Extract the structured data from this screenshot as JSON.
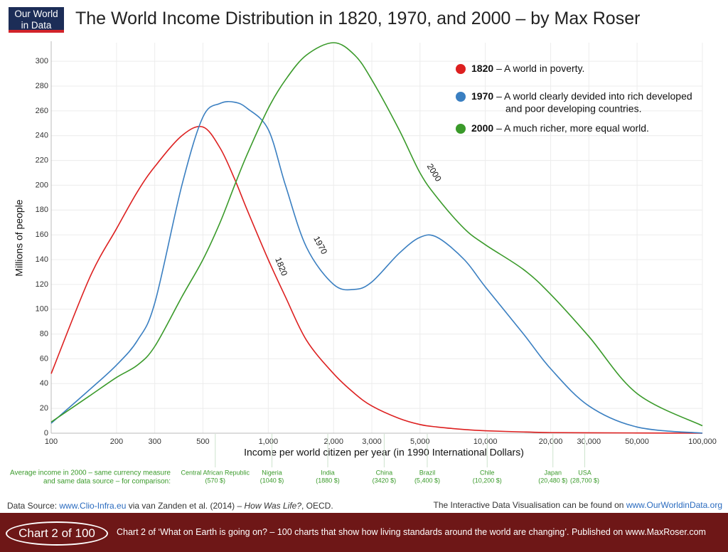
{
  "header": {
    "logo": [
      "Our World",
      "in Data"
    ],
    "title": "The World Income Distribution in 1820, 1970, and 2000 – by Max Roser"
  },
  "chart_data": {
    "type": "line",
    "x_label": "Income per world citizen per year (in 1990 International Dollars)",
    "y_label": "Millions of people",
    "log_x": true,
    "grid": true,
    "xlim": [
      100,
      100000
    ],
    "ylim": [
      0,
      315
    ],
    "xticks": [
      100,
      200,
      300,
      500,
      {
        "value": 1000,
        "label": "1,000"
      },
      {
        "value": 2000,
        "label": "2,000"
      },
      {
        "value": 3000,
        "label": "3,000"
      },
      {
        "value": 5000,
        "label": "5,000"
      },
      {
        "value": 10000,
        "label": "10,000"
      },
      {
        "value": 20000,
        "label": "20,000"
      },
      {
        "value": 30000,
        "label": "30,000"
      },
      {
        "value": 50000,
        "label": "50,000"
      },
      {
        "value": 100000,
        "label": "100,000"
      }
    ],
    "yticks": [
      0,
      20,
      40,
      60,
      80,
      100,
      120,
      140,
      160,
      180,
      200,
      220,
      240,
      260,
      280,
      300
    ],
    "x": [
      100,
      150,
      200,
      250,
      300,
      400,
      500,
      600,
      700,
      800,
      1000,
      1200,
      1500,
      2000,
      2500,
      3000,
      4000,
      5000,
      6000,
      8000,
      10000,
      15000,
      20000,
      30000,
      50000,
      100000
    ],
    "series": [
      {
        "name": "1820",
        "color": "#dd2020",
        "description": [
          "– A world in poverty."
        ],
        "values": [
          48,
          125,
          165,
          195,
          215,
          240,
          247,
          230,
          205,
          180,
          140,
          110,
          75,
          48,
          32,
          22,
          12,
          7,
          5,
          3,
          2,
          1,
          0.5,
          0.3,
          0.2,
          0
        ]
      },
      {
        "name": "1970",
        "color": "#3a7fc1",
        "description": [
          "– A world clearly devided into rich developed",
          "and poor developing countries."
        ],
        "values": [
          8,
          35,
          55,
          75,
          105,
          200,
          255,
          266,
          267,
          262,
          245,
          200,
          150,
          120,
          116,
          122,
          145,
          158,
          158,
          140,
          118,
          80,
          52,
          22,
          5,
          0
        ]
      },
      {
        "name": "2000",
        "color": "#3a9a2a",
        "description": [
          "– A much richer, more equal world."
        ],
        "values": [
          9,
          30,
          45,
          55,
          70,
          110,
          140,
          170,
          200,
          225,
          262,
          285,
          305,
          315,
          305,
          285,
          245,
          210,
          190,
          165,
          152,
          132,
          112,
          78,
          32,
          6
        ]
      }
    ],
    "comparison_title": [
      "Average income in 2000 – same currency measure",
      "and same data source – for comparison:"
    ],
    "comparison": [
      {
        "name": "Central African Republic",
        "value": 570,
        "label": "(570 $)"
      },
      {
        "name": "Nigeria",
        "value": 1040,
        "label": "(1040 $)"
      },
      {
        "name": "India",
        "value": 1880,
        "label": "(1880 $)"
      },
      {
        "name": "China",
        "value": 3420,
        "label": "(3420 $)"
      },
      {
        "name": "Brazil",
        "value": 5400,
        "label": "(5,400 $)"
      },
      {
        "name": "Chile",
        "value": 10200,
        "label": "(10,200 $)"
      },
      {
        "name": "Japan",
        "value": 20480,
        "label": "(20,480 $)"
      },
      {
        "name": "USA",
        "value": 28700,
        "label": "(28,700 $)"
      }
    ]
  },
  "footer": {
    "source": [
      "Data Source: ",
      "www.Clio-Infra.eu",
      " via van Zanden et al. (2014) – ",
      "How Was Life?",
      ", OECD."
    ],
    "interactive": [
      "The Interactive Data Visualisation can be found on ",
      "www.OurWorldinData.org"
    ],
    "chart_number": "Chart 2 of 100",
    "note": "Chart 2 of ‘What on Earth is going on? – 100 charts that show how living standards around the world are changing’. Published on www.MaxRoser.com"
  }
}
